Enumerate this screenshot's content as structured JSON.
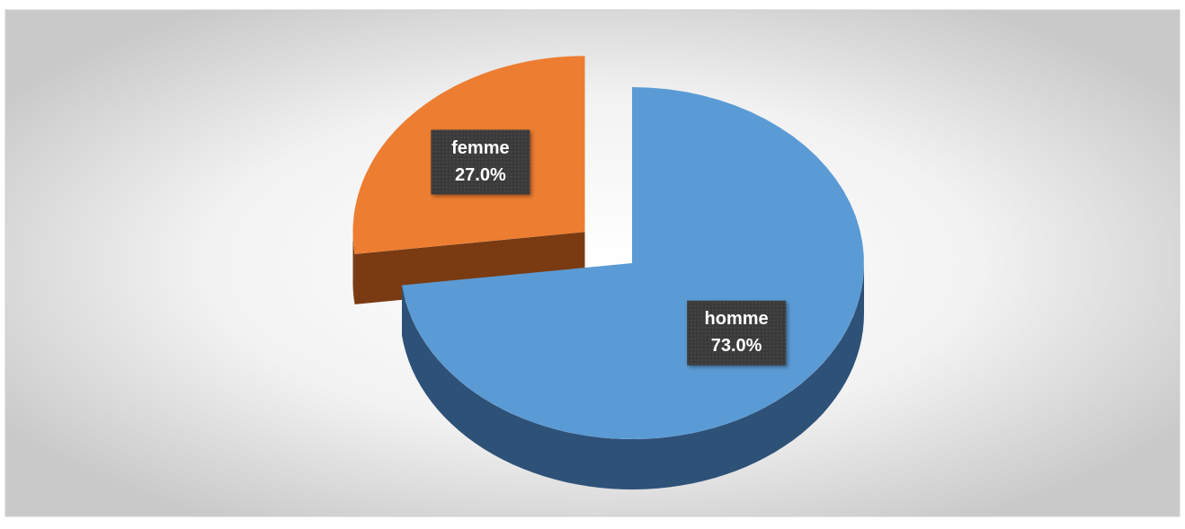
{
  "chart_data": {
    "type": "pie3d",
    "categories": [
      "homme",
      "femme"
    ],
    "values": [
      73,
      27
    ],
    "value_labels": [
      "73.0%",
      "27.0%"
    ],
    "colors": [
      "#5b9bd5",
      "#ed7d31"
    ],
    "side_colors": [
      "#2e5178",
      "#7a3b12"
    ],
    "explode": [
      0,
      1
    ]
  }
}
